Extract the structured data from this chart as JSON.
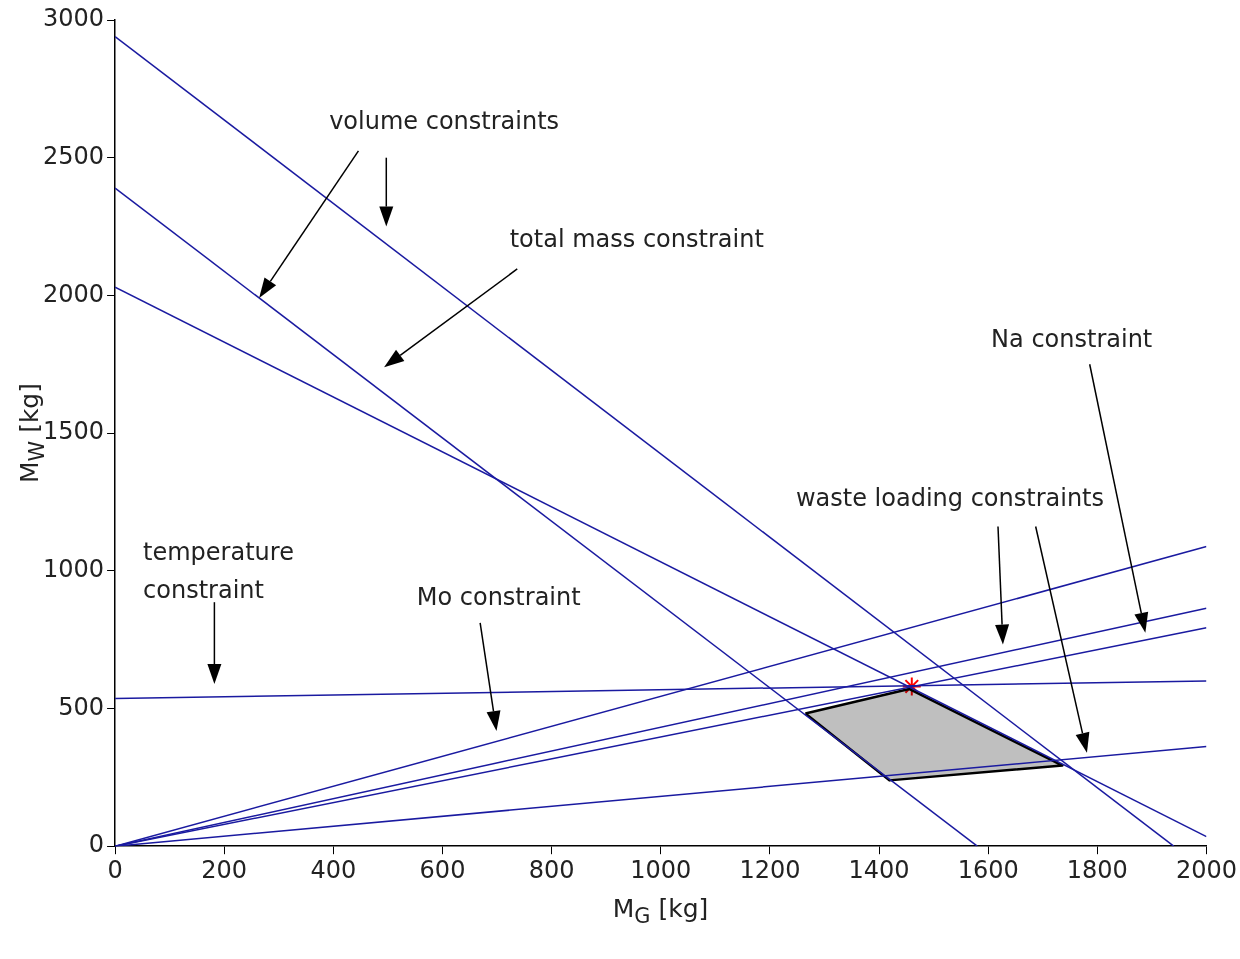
{
  "chart_data": {
    "type": "line",
    "xlabel": "M$_{G}$ [kg]",
    "ylabel": "M$_{W}$ [kg]",
    "xlim": [
      0,
      2000
    ],
    "xticks": [
      0,
      200,
      400,
      600,
      800,
      1000,
      1200,
      1400,
      1600,
      1800,
      2000
    ],
    "ylim": [
      0,
      3000
    ],
    "yticks": [
      0,
      500,
      1000,
      1500,
      2000,
      2500,
      3000
    ],
    "grid": false,
    "legend": false,
    "marker": "none",
    "line_style": "solid",
    "annotations": [
      "volume constraints",
      "total mass constraint",
      "Na constraint",
      "waste loading constraints",
      "temperature constraint",
      "Mo constraint"
    ],
    "series": [
      {
        "color": "#1a1aa0",
        "x": [
          0,
          1940
        ],
        "values": [
          2940,
          0
        ]
      },
      {
        "color": "#1a1aa0",
        "x": [
          0,
          1580
        ],
        "values": [
          2390,
          0
        ]
      },
      {
        "color": "#1a1aa0",
        "x": [
          0,
          2000
        ],
        "values": [
          2030,
          35
        ]
      },
      {
        "color": "#1a1aa0",
        "x": [
          0,
          2000
        ],
        "values": [
          0,
          1088
        ]
      },
      {
        "color": "#1a1aa0",
        "x": [
          0,
          2000
        ],
        "values": [
          0,
          864
        ]
      },
      {
        "color": "#1a1aa0",
        "x": [
          0,
          2000
        ],
        "values": [
          0,
          793
        ]
      },
      {
        "color": "#1a1aa0",
        "x": [
          0,
          2000
        ],
        "values": [
          536,
          600
        ]
      },
      {
        "color": "#1a1aa0",
        "x": [
          0,
          2000
        ],
        "values": [
          0,
          362
        ]
      },
      {
        "type": "area",
        "color": "#000000",
        "x": [
          1265,
          1455,
          1736,
          1419,
          1265
        ],
        "values": [
          482,
          571,
          293,
          239,
          482
        ]
      },
      {
        "type": "scatter",
        "marker": "cross",
        "color": "#ff0000",
        "x": [
          1460
        ],
        "values": [
          580
        ]
      }
    ]
  }
}
